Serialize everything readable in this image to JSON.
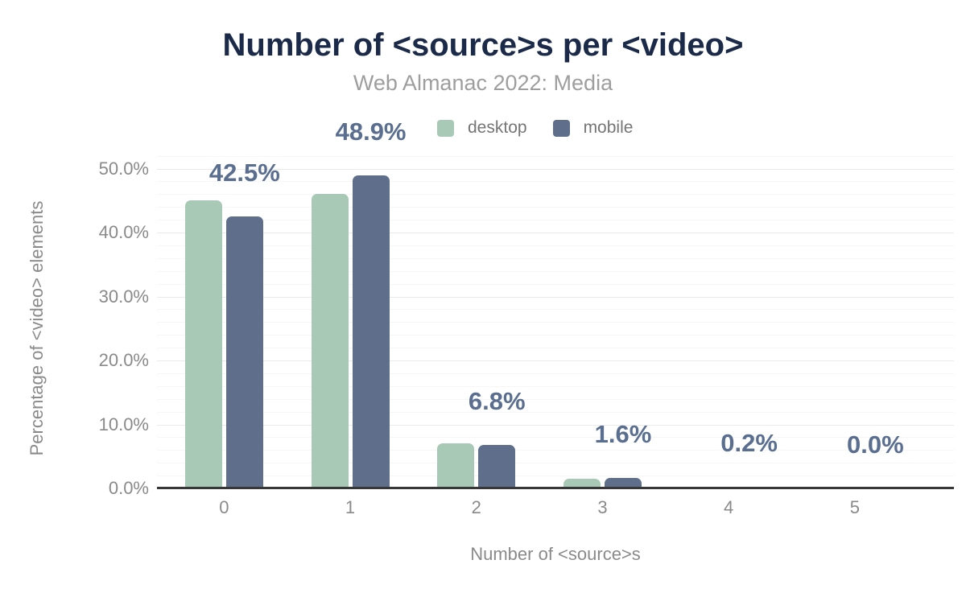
{
  "chart_data": {
    "type": "bar",
    "title": "Number of <source>s per <video>",
    "subtitle": "Web Almanac 2022: Media",
    "xlabel": "Number of <source>s",
    "ylabel": "Percentage of <video> elements",
    "categories": [
      "0",
      "1",
      "2",
      "3",
      "4",
      "5"
    ],
    "series": [
      {
        "name": "desktop",
        "color": "#a8c9b6",
        "values": [
          45.0,
          46.0,
          7.0,
          1.5,
          0.2,
          0.0
        ]
      },
      {
        "name": "mobile",
        "color": "#5e6e8b",
        "values": [
          42.5,
          48.9,
          6.8,
          1.6,
          0.2,
          0.0
        ]
      }
    ],
    "data_labels": [
      "42.5%",
      "48.9%",
      "6.8%",
      "1.6%",
      "0.2%",
      "0.0%"
    ],
    "data_labels_series": "mobile",
    "y_ticks": [
      {
        "value": 0,
        "label": "0.0%"
      },
      {
        "value": 10,
        "label": "10.0%"
      },
      {
        "value": 20,
        "label": "20.0%"
      },
      {
        "value": 30,
        "label": "30.0%"
      },
      {
        "value": 40,
        "label": "40.0%"
      },
      {
        "value": 50,
        "label": "50.0%"
      }
    ],
    "ylim": [
      0,
      50
    ],
    "grid": {
      "minor_step_pct": 2,
      "major_step_pct": 10,
      "minor_max_pct": 52
    },
    "legend_position": "top-center"
  },
  "colors": {
    "desktop": "#a8c9b6",
    "mobile": "#5e6e8b",
    "title": "#1b2a49",
    "subtitle": "#9e9e9e",
    "axis_text": "#8a8a8a",
    "legend_text": "#757575",
    "data_label": "#5a6e8f",
    "baseline": "#373737"
  }
}
